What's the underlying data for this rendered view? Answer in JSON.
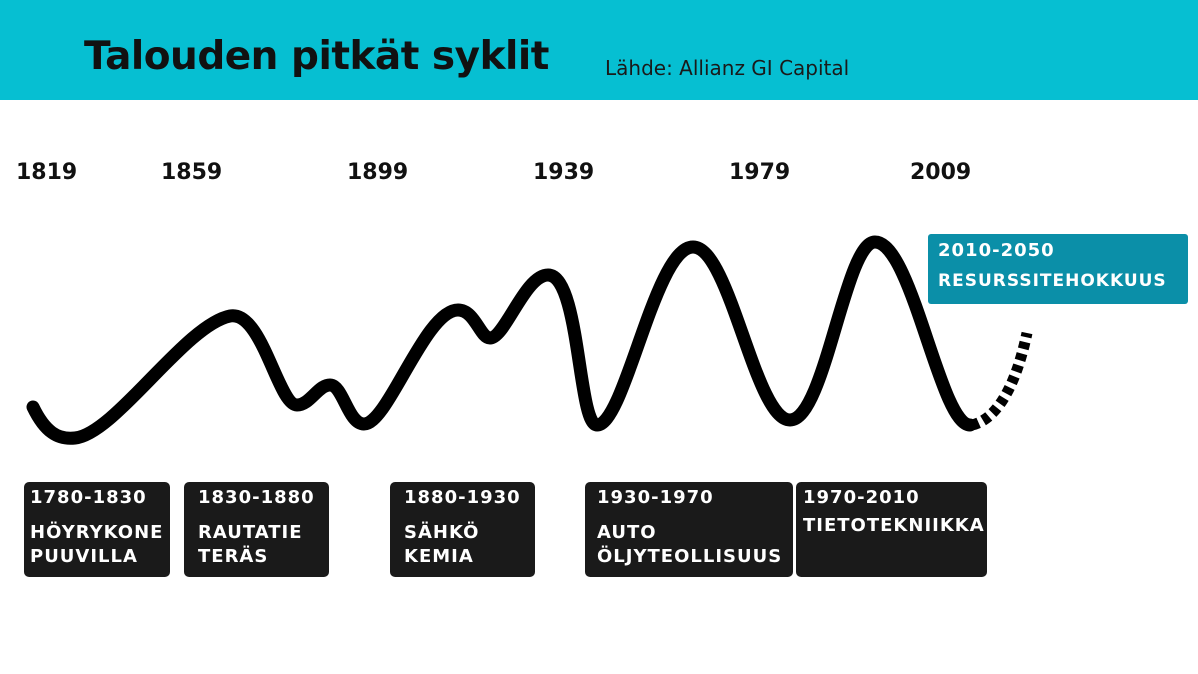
{
  "header": {
    "title": "Talouden pitkät syklit",
    "source": "Lähde: Allianz GI Capital",
    "color": "#06bfd2"
  },
  "chart_data": {
    "type": "line",
    "title": "Talouden pitkät syklit",
    "x_tick_labels": [
      "1819",
      "1859",
      "1899",
      "1939",
      "1979",
      "2009"
    ],
    "line_color": "#000000",
    "projection_style": "dashed",
    "eras": [
      {
        "range": "1780-1830",
        "lines": [
          "HÖYRYKONE",
          "PUUVILLA"
        ]
      },
      {
        "range": "1830-1880",
        "lines": [
          "RAUTATIE",
          "TERÄS"
        ]
      },
      {
        "range": "1880-1930",
        "lines": [
          "SÄHKÖ",
          "KEMIA"
        ]
      },
      {
        "range": "1930-1970",
        "lines": [
          "AUTO",
          "ÖLJYTEOLLISUUS"
        ]
      },
      {
        "range": "1970-2010",
        "lines": [
          "TIETOTEKNIIKKA"
        ]
      }
    ],
    "future": {
      "range": "2010-2050",
      "name": "RESURSSITEHOKKUUS",
      "color": "#0b8fa8"
    }
  }
}
